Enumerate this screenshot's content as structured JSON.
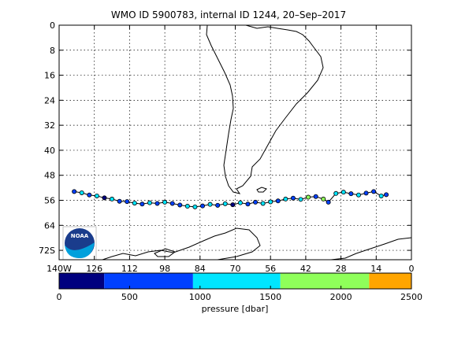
{
  "title": "WMO ID 5900783, internal ID 1244, 20–Sep–2017",
  "map": {
    "lon_range": [
      -140,
      0
    ],
    "lat_range": [
      0,
      -75
    ],
    "lat_ticks": [
      "0",
      "8",
      "16",
      "24",
      "32",
      "40",
      "48",
      "56",
      "64",
      "72S"
    ],
    "lon_ticks": [
      "140W",
      "126",
      "112",
      "98",
      "84",
      "70",
      "56",
      "42",
      "28",
      "14",
      "0"
    ],
    "grid": true,
    "logo_text": "NOAA"
  },
  "colorbar": {
    "label": "pressure [dbar]",
    "ticks": [
      "0",
      "500",
      "1000",
      "1500",
      "2000",
      "2500"
    ],
    "range": [
      0,
      2500
    ],
    "bands": [
      {
        "from": 0,
        "to": 320,
        "color": "#00007f"
      },
      {
        "from": 320,
        "to": 950,
        "color": "#0040ff"
      },
      {
        "from": 950,
        "to": 1570,
        "color": "#00e5ff"
      },
      {
        "from": 1570,
        "to": 2200,
        "color": "#8fff5a"
      },
      {
        "from": 2200,
        "to": 2500,
        "color": "#ffa500"
      }
    ]
  },
  "chart_data": {
    "type": "scatter",
    "title": "WMO ID 5900783, internal ID 1244, 20–Sep–2017",
    "xlabel": "",
    "ylabel": "",
    "xlim": [
      -140,
      0
    ],
    "ylim": [
      -75,
      0
    ],
    "x_ticks": [
      "140W",
      "126",
      "112",
      "98",
      "84",
      "70",
      "56",
      "42",
      "28",
      "14",
      "0"
    ],
    "y_ticks": [
      "0",
      "8",
      "16",
      "24",
      "32",
      "40",
      "48",
      "56",
      "64",
      "72S"
    ],
    "colorbar_label": "pressure [dbar]",
    "series": [
      {
        "values": [
          [
            -134,
            -53.2
          ],
          [
            -131,
            -53.6
          ],
          [
            -128,
            -54.3
          ],
          [
            -125,
            -54.6
          ],
          [
            -122,
            -55.2
          ],
          [
            -119,
            -55.6
          ],
          [
            -116,
            -56.3
          ],
          [
            -113,
            -56.4
          ],
          [
            -110,
            -56.9
          ],
          [
            -107,
            -57.2
          ],
          [
            -104,
            -56.8
          ],
          [
            -101,
            -57.0
          ],
          [
            -98,
            -56.6
          ],
          [
            -95,
            -57.0
          ],
          [
            -92,
            -57.5
          ],
          [
            -89,
            -57.9
          ],
          [
            -86,
            -58.1
          ],
          [
            -83,
            -57.8
          ],
          [
            -80,
            -57.3
          ],
          [
            -77,
            -57.6
          ],
          [
            -74,
            -57.1
          ],
          [
            -71,
            -57.4
          ],
          [
            -68,
            -56.8
          ],
          [
            -65,
            -57.2
          ],
          [
            -62,
            -56.6
          ],
          [
            -59,
            -57.0
          ],
          [
            -56,
            -56.5
          ],
          [
            -53,
            -56.2
          ],
          [
            -50,
            -55.6
          ],
          [
            -47,
            -55.3
          ],
          [
            -44,
            -55.7
          ],
          [
            -41,
            -55.0
          ],
          [
            -38,
            -54.8
          ],
          [
            -35,
            -55.6
          ],
          [
            -33,
            -56.6
          ],
          [
            -30,
            -53.8
          ],
          [
            -27,
            -53.4
          ],
          [
            -24,
            -53.9
          ],
          [
            -21,
            -54.3
          ],
          [
            -18,
            -53.7
          ],
          [
            -15,
            -53.2
          ],
          [
            -12,
            -54.6
          ],
          [
            -10,
            -54.2
          ]
        ],
        "pressures": [
          600,
          1300,
          800,
          1500,
          300,
          1200,
          900,
          700,
          1400,
          600,
          1100,
          500,
          1300,
          900,
          700,
          1500,
          1000,
          600,
          1200,
          800,
          1400,
          300,
          1100,
          900,
          700,
          1300,
          1000,
          600,
          1500,
          800,
          1200,
          1600,
          900,
          1800,
          700,
          1400,
          1000,
          800,
          1200,
          900,
          600,
          1100,
          700
        ]
      }
    ]
  }
}
